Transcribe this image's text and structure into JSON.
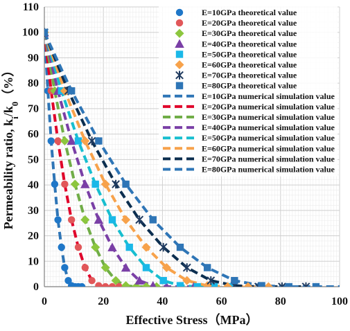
{
  "chart_data": {
    "type": "scatter",
    "xlabel": "Effective Stress（MPa）",
    "ylabel": "Permeability ratio, ki/k0（%）",
    "xlim": [
      0,
      100
    ],
    "ylim": [
      0,
      110
    ],
    "xticks": [
      0,
      20,
      40,
      60,
      80,
      100
    ],
    "yticks": [
      0,
      10,
      20,
      30,
      40,
      50,
      60,
      70,
      80,
      90,
      100,
      110
    ],
    "grid": true,
    "legend_position": "top-right",
    "series": [
      {
        "name": "E=10GPa theoretical value",
        "kind": "theoretical",
        "marker": "circle",
        "color": "#1f77c8",
        "x": [
          0,
          1.2,
          2.3,
          3.5,
          4.6,
          5.8,
          6.9,
          8.1,
          9.2,
          10.4,
          11.5,
          12.7
        ],
        "y": [
          100,
          77,
          57.3,
          40.3,
          26.3,
          15.5,
          7.5,
          2.4,
          0.4,
          0,
          0,
          0
        ]
      },
      {
        "name": "E=20GPa theoretical value",
        "kind": "theoretical",
        "marker": "circle",
        "color": "#e15759",
        "x": [
          0,
          2.3,
          4.6,
          6.9,
          9.2,
          11.5,
          13.8,
          16.1,
          18.4,
          20.7,
          23.0,
          25.3
        ],
        "y": [
          100,
          77,
          57.3,
          40.3,
          26.3,
          15.5,
          7.5,
          2.4,
          0.4,
          0,
          0,
          0
        ]
      },
      {
        "name": "E=30GPa theoretical value",
        "kind": "theoretical",
        "marker": "diamond",
        "color": "#8cc63e",
        "x": [
          0,
          3.5,
          6.9,
          10.4,
          13.8,
          17.3,
          20.7,
          24.2,
          27.6,
          31.1,
          34.5,
          38.0
        ],
        "y": [
          100,
          77,
          57.3,
          40.3,
          26.3,
          15.5,
          7.5,
          2.4,
          0.4,
          0,
          0,
          0
        ]
      },
      {
        "name": "E=40GPa theoretical value",
        "kind": "theoretical",
        "marker": "triangle",
        "color": "#7a3fa6",
        "x": [
          0,
          4.6,
          9.2,
          13.8,
          18.4,
          23.0,
          27.6,
          32.2,
          36.8,
          41.4,
          46.0,
          50.6
        ],
        "y": [
          100,
          77,
          57.3,
          40.3,
          26.3,
          15.5,
          7.5,
          2.4,
          0.4,
          0,
          0,
          0
        ]
      },
      {
        "name": "E=50GPa theoretical value",
        "kind": "theoretical",
        "marker": "square",
        "color": "#1ab8e8",
        "x": [
          0,
          5.8,
          11.5,
          17.3,
          23.0,
          28.8,
          34.5,
          40.3,
          46.0,
          51.8,
          57.5,
          63.3
        ],
        "y": [
          100,
          77,
          57.3,
          40.3,
          26.3,
          15.5,
          7.5,
          2.4,
          0.4,
          0,
          0,
          0
        ]
      },
      {
        "name": "E=60GPa theoretical value",
        "kind": "theoretical",
        "marker": "diamond",
        "color": "#f7a24b",
        "x": [
          0,
          6.9,
          13.8,
          20.7,
          27.6,
          34.5,
          41.4,
          48.3,
          55.2,
          62.1,
          69.0,
          75.9
        ],
        "y": [
          100,
          77,
          57.3,
          40.3,
          26.3,
          15.5,
          7.5,
          2.4,
          0.4,
          0,
          0,
          0
        ]
      },
      {
        "name": "E=70GPa theoretical value",
        "kind": "theoretical",
        "marker": "star",
        "color": "#1f3a5f",
        "x": [
          0,
          8.1,
          16.1,
          24.2,
          32.2,
          40.3,
          48.3,
          56.4,
          64.4,
          72.5,
          80.5,
          88.6
        ],
        "y": [
          100,
          77,
          57.3,
          40.3,
          26.3,
          15.5,
          7.5,
          2.4,
          0.4,
          0,
          0,
          0
        ]
      },
      {
        "name": "E=80GPa theoretical value",
        "kind": "theoretical",
        "marker": "square",
        "color": "#2e75b6",
        "x": [
          0,
          9.2,
          18.4,
          27.6,
          36.8,
          46.0,
          55.2,
          64.4,
          73.6,
          82.8,
          92.0,
          101.2
        ],
        "y": [
          100,
          77,
          57.3,
          40.3,
          26.3,
          15.5,
          7.5,
          2.4,
          0.4,
          0,
          0,
          0
        ]
      },
      {
        "name": "E=10GPa numerical simulation value",
        "kind": "numerical",
        "color": "#2e75b6",
        "x": [
          0,
          1.2,
          2.3,
          3.5,
          4.6,
          5.8,
          6.9,
          8.1,
          9.2,
          10.4,
          11.5,
          12.7
        ],
        "y": [
          100,
          77,
          57.3,
          40.3,
          26.3,
          15.5,
          7.5,
          2.4,
          0.4,
          0,
          0,
          0
        ]
      },
      {
        "name": "E=20GPa numerical simulation value",
        "kind": "numerical",
        "color": "#e0002a",
        "x": [
          0,
          2.3,
          4.6,
          6.9,
          9.2,
          11.5,
          13.8,
          16.1,
          18.4,
          20.7,
          23.0,
          25.3
        ],
        "y": [
          100,
          77,
          57.3,
          40.3,
          26.3,
          15.5,
          7.5,
          2.4,
          0.4,
          0,
          0,
          0
        ]
      },
      {
        "name": "E=30GPa numerical simulation value",
        "kind": "numerical",
        "color": "#70ad47",
        "x": [
          0,
          3.5,
          6.9,
          10.4,
          13.8,
          17.3,
          20.7,
          24.2,
          27.6,
          31.1,
          34.5,
          38.0
        ],
        "y": [
          100,
          77,
          57.3,
          40.3,
          26.3,
          15.5,
          7.5,
          2.4,
          0.4,
          0,
          0,
          0
        ]
      },
      {
        "name": "E=40GPa numerical simulation value",
        "kind": "numerical",
        "color": "#7a3fa6",
        "x": [
          0,
          4.6,
          9.2,
          13.8,
          18.4,
          23.0,
          27.6,
          32.2,
          36.8,
          41.4,
          46.0,
          50.6
        ],
        "y": [
          100,
          77,
          57.3,
          40.3,
          26.3,
          15.5,
          7.5,
          2.4,
          0.4,
          0,
          0,
          0
        ]
      },
      {
        "name": "E=50GPa numerical simulation value",
        "kind": "numerical",
        "color": "#17becf",
        "x": [
          0,
          5.8,
          11.5,
          17.3,
          23.0,
          28.8,
          34.5,
          40.3,
          46.0,
          51.8,
          57.5,
          63.3
        ],
        "y": [
          100,
          77,
          57.3,
          40.3,
          26.3,
          15.5,
          7.5,
          2.4,
          0.4,
          0,
          0,
          0
        ]
      },
      {
        "name": "E=60GPa numerical simulation value",
        "kind": "numerical",
        "color": "#f7a24b",
        "x": [
          0,
          6.9,
          13.8,
          20.7,
          27.6,
          34.5,
          41.4,
          48.3,
          55.2,
          62.1,
          69.0,
          75.9
        ],
        "y": [
          100,
          77,
          57.3,
          40.3,
          26.3,
          15.5,
          7.5,
          2.4,
          0.4,
          0,
          0,
          0
        ]
      },
      {
        "name": "E=70GPa numerical simulation value",
        "kind": "numerical",
        "color": "#0b2e4f",
        "x": [
          0,
          8.1,
          16.1,
          24.2,
          32.2,
          40.3,
          48.3,
          56.4,
          64.4,
          72.5,
          80.5,
          88.6
        ],
        "y": [
          100,
          77,
          57.3,
          40.3,
          26.3,
          15.5,
          7.5,
          2.4,
          0.4,
          0,
          0,
          0
        ]
      },
      {
        "name": "E=80GPa numerical simulation value",
        "kind": "numerical",
        "color": "#2e75b6",
        "x": [
          0,
          9.2,
          18.4,
          27.6,
          36.8,
          46.0,
          55.2,
          64.4,
          73.6,
          82.8,
          92.0,
          101.2
        ],
        "y": [
          100,
          77,
          57.3,
          40.3,
          26.3,
          15.5,
          7.5,
          2.4,
          0.4,
          0,
          0,
          0
        ]
      }
    ]
  }
}
